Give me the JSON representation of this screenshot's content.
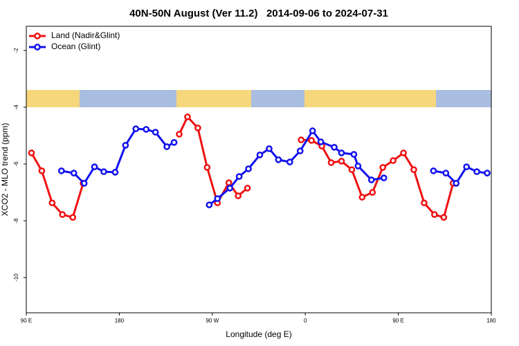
{
  "chart_data": {
    "type": "line",
    "title": "40N-50N August (Ver 11.2)   2014-09-06 to 2024-07-31",
    "xlabel": "Longitude (deg E)",
    "ylabel": "XCO2 - MLO trend (ppm)",
    "xlim": [
      90,
      540
    ],
    "ylim": [
      -11.24,
      -1.15
    ],
    "xticks": [
      {
        "value": 90,
        "label": "90 E"
      },
      180,
      {
        "value": 270,
        "label": "90 W"
      },
      {
        "value": 360,
        "label": "0"
      },
      {
        "value": 450,
        "label": "90 E"
      },
      {
        "value": 540,
        "label": "180"
      }
    ],
    "yticks": [
      -2,
      -4,
      -6,
      -8,
      -10
    ],
    "legend": "top-left",
    "series": [
      {
        "name": "Land (Nadir&Glint)",
        "color": "#ee1111",
        "x": [
          95,
          105,
          115,
          125,
          135,
          145,
          null,
          238,
          246,
          256,
          265,
          275,
          286,
          295,
          304,
          null,
          356,
          366,
          376,
          385,
          395,
          405,
          415,
          425,
          435,
          445,
          455,
          465,
          475,
          485,
          494,
          503
        ],
        "values": [
          -5.61,
          -6.24,
          -7.37,
          -7.78,
          -7.88,
          -6.68,
          null,
          -4.95,
          -4.34,
          -4.73,
          -6.12,
          -7.37,
          -6.66,
          -7.12,
          -6.85,
          null,
          -5.15,
          -5.17,
          -5.37,
          -5.95,
          -5.9,
          -6.2,
          -7.17,
          -7.0,
          -6.12,
          -5.88,
          -5.61,
          -6.2,
          -7.37,
          -7.78,
          -7.88,
          -6.68
        ]
      },
      {
        "name": "Ocean (Glint)",
        "color": "#1111ee",
        "x": [
          124,
          136,
          146,
          156,
          165,
          176,
          186,
          196,
          206,
          215,
          226,
          233,
          null,
          267,
          275,
          287,
          296,
          305,
          316,
          325,
          334,
          345,
          355,
          367,
          375,
          388,
          395,
          407,
          411,
          424,
          436,
          null,
          484,
          496,
          506,
          516,
          526,
          536
        ],
        "values": [
          -6.24,
          -6.32,
          -6.68,
          -6.1,
          -6.27,
          -6.29,
          -5.34,
          -4.76,
          -4.78,
          -4.88,
          -5.39,
          -5.24,
          null,
          -7.44,
          -7.22,
          -6.85,
          -6.44,
          -6.17,
          -5.68,
          -5.46,
          -5.85,
          -5.93,
          -5.54,
          -4.83,
          -5.22,
          -5.41,
          -5.61,
          -5.66,
          -6.07,
          -6.56,
          -6.49,
          null,
          -6.24,
          -6.32,
          -6.68,
          -6.1,
          -6.27,
          -6.32
        ]
      }
    ]
  }
}
